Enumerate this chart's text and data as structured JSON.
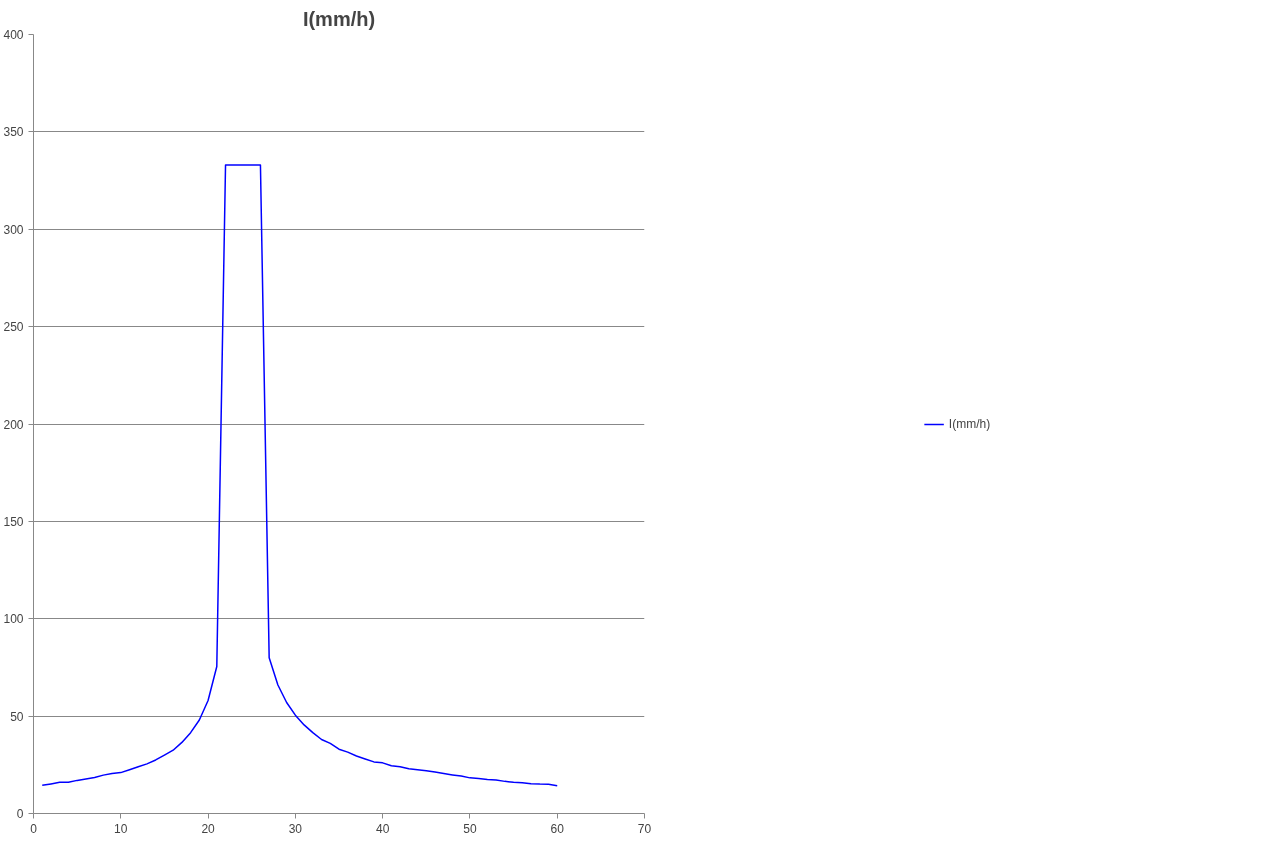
{
  "chart_data": {
    "type": "line",
    "title": "I(mm/h)",
    "x": [
      1,
      2,
      3,
      4,
      5,
      6,
      7,
      8,
      9,
      10,
      11,
      12,
      13,
      14,
      15,
      16,
      17,
      18,
      19,
      20,
      21,
      22,
      23,
      24,
      25,
      26,
      27,
      28,
      29,
      30,
      31,
      32,
      33,
      34,
      35,
      36,
      37,
      38,
      39,
      40,
      41,
      42,
      43,
      44,
      45,
      46,
      47,
      48,
      49,
      50,
      51,
      52,
      53,
      54,
      55,
      56,
      57,
      58,
      59,
      60
    ],
    "series": [
      {
        "name": "I(mm/h)",
        "color": "#0000ff",
        "values": [
          14.5,
          15.2,
          16,
          16,
          17,
          17.7,
          18.5,
          19.7,
          20.5,
          21,
          22.5,
          24,
          25.5,
          27.5,
          30,
          32.5,
          36.5,
          41.5,
          48,
          58,
          75.5,
          333,
          333,
          333,
          333,
          333,
          80,
          66,
          57,
          50.5,
          45.5,
          41.5,
          38,
          36,
          33,
          31.5,
          29.5,
          28,
          26.5,
          26,
          24.5,
          24,
          23,
          22.5,
          22,
          21.3,
          20.5,
          19.8,
          19.2,
          18.3,
          18,
          17.5,
          17.2,
          16.5,
          16,
          15.8,
          15.3,
          15.1,
          15,
          14.3
        ]
      }
    ],
    "xlim": [
      0,
      70
    ],
    "xticks": [
      0,
      10,
      20,
      30,
      40,
      50,
      60,
      70
    ],
    "ylim": [
      0,
      400
    ],
    "yticks": [
      0,
      50,
      100,
      150,
      200,
      250,
      300,
      350,
      400
    ],
    "grid": "y",
    "legend": "right",
    "marker": "none",
    "line_style": "solid"
  }
}
